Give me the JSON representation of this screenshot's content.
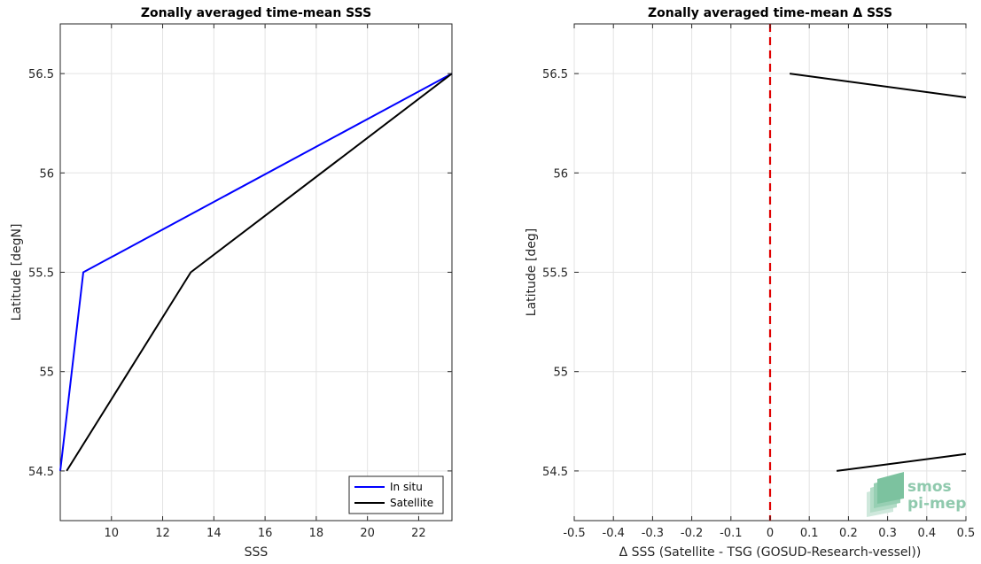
{
  "chart_data": [
    {
      "type": "line",
      "title": "Zonally averaged time-mean SSS",
      "xlabel": "SSS",
      "ylabel": "Latitude [degN]",
      "xlim": [
        8,
        23.3
      ],
      "ylim": [
        54.25,
        56.75
      ],
      "xticks": [
        "10",
        "12",
        "14",
        "16",
        "18",
        "20",
        "22"
      ],
      "xtick_values": [
        10,
        12,
        14,
        16,
        18,
        20,
        22
      ],
      "yticks": [
        "54.5",
        "55",
        "55.5",
        "56",
        "56.5"
      ],
      "ytick_values": [
        54.5,
        55,
        55.5,
        56,
        56.5
      ],
      "grid": true,
      "legend": {
        "placement": "bottom-right",
        "entries": [
          "In situ",
          "Satellite"
        ]
      },
      "series": [
        {
          "name": "In situ",
          "color": "#0000ff",
          "x": [
            8.0,
            8.9,
            23.3
          ],
          "y": [
            54.5,
            55.5,
            56.5
          ]
        },
        {
          "name": "Satellite",
          "color": "#000000",
          "x": [
            8.25,
            13.1,
            23.3
          ],
          "y": [
            54.5,
            55.5,
            56.5
          ]
        }
      ]
    },
    {
      "type": "line",
      "title": "Zonally averaged time-mean Δ SSS",
      "xlabel": "Δ SSS (Satellite - TSG (GOSUD-Research-vessel))",
      "ylabel": "Latitude [deg]",
      "xlim": [
        -0.5,
        0.5
      ],
      "ylim": [
        54.25,
        56.75
      ],
      "xticks": [
        "-0.5",
        "-0.4",
        "-0.3",
        "-0.2",
        "-0.1",
        "0",
        "0.1",
        "0.2",
        "0.3",
        "0.4",
        "0.5"
      ],
      "xtick_values": [
        -0.5,
        -0.4,
        -0.3,
        -0.2,
        -0.1,
        0,
        0.1,
        0.2,
        0.3,
        0.4,
        0.5
      ],
      "yticks": [
        "54.5",
        "55",
        "55.5",
        "56",
        "56.5"
      ],
      "ytick_values": [
        54.5,
        55,
        55.5,
        56,
        56.5
      ],
      "grid": true,
      "reference_line": {
        "x": 0,
        "color": "#e00000",
        "style": "dashed"
      },
      "series": [
        {
          "color": "#000000",
          "x": [
            0.05,
            0.5
          ],
          "y": [
            56.5,
            56.38
          ]
        },
        {
          "color": "#000000",
          "x": [
            0.17,
            0.5
          ],
          "y": [
            54.5,
            54.585
          ]
        }
      ]
    }
  ],
  "logo": {
    "line1": "smos",
    "line2": "pi-mep",
    "color": "#8fc9ad"
  }
}
